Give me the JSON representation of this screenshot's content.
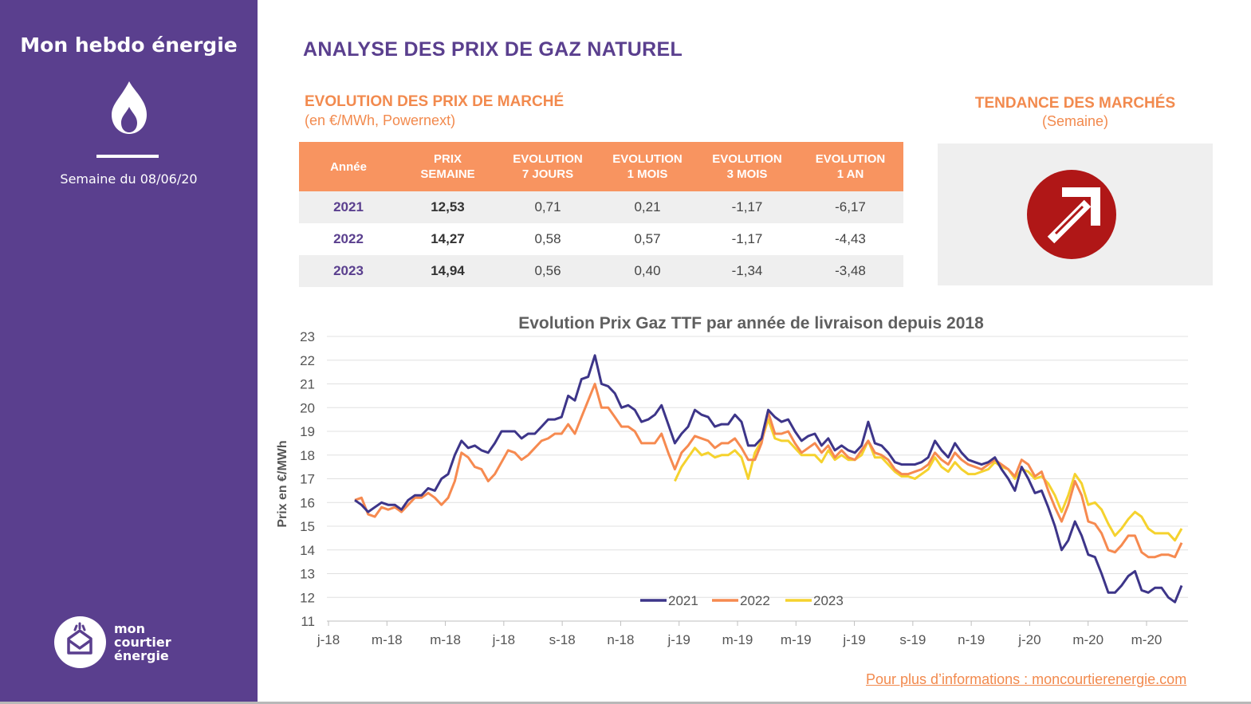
{
  "sidebar": {
    "brand": "Mon hebdo énergie",
    "week": "Semaine du 08/06/20",
    "logo_lines": [
      "mon",
      "courtier",
      "énergie"
    ]
  },
  "header": {
    "title": "ANALYSE DES PRIX DE GAZ NATUREL"
  },
  "market": {
    "title": "EVOLUTION DES PRIX DE MARCHÉ",
    "unit": "(en €/MWh, Powernext)",
    "headers": [
      "Année",
      "PRIX SEMAINE",
      "EVOLUTION 7 JOURS",
      "EVOLUTION 1 MOIS",
      "EVOLUTION 3 MOIS",
      "EVOLUTION 1 AN"
    ],
    "header_lines": [
      [
        "Année"
      ],
      [
        "PRIX",
        "SEMAINE"
      ],
      [
        "EVOLUTION",
        "7 JOURS"
      ],
      [
        "EVOLUTION",
        "1 MOIS"
      ],
      [
        "EVOLUTION",
        "3 MOIS"
      ],
      [
        "EVOLUTION",
        "1 AN"
      ]
    ],
    "rows": [
      [
        "2021",
        "12,53",
        "0,71",
        "0,21",
        "-1,17",
        "-6,17"
      ],
      [
        "2022",
        "14,27",
        "0,58",
        "0,57",
        "-1,17",
        "-4,43"
      ],
      [
        "2023",
        "14,94",
        "0,56",
        "0,40",
        "-1,34",
        "-3,48"
      ]
    ]
  },
  "trend": {
    "title": "TENDANCE DES MARCHÉS",
    "subtitle": "(Semaine)",
    "direction": "up-arrow-icon",
    "color": "#b01717"
  },
  "footer": {
    "link": "Pour plus d’informations : moncourtierenergie.com"
  },
  "colors": {
    "sidebar": "#5a3f8e",
    "accent": "#f28a4e",
    "s2021": "#3d3589",
    "s2022": "#f68a50",
    "s2023": "#f5d22e"
  },
  "chart_data": {
    "type": "line",
    "title": "Evolution Prix Gaz TTF par année de livraison depuis 2018",
    "ylabel": "Prix en €/MWh",
    "xlabel": "",
    "ylim": [
      11,
      23
    ],
    "yticks": [
      11,
      12,
      13,
      14,
      15,
      16,
      17,
      18,
      19,
      20,
      21,
      22,
      23
    ],
    "xticks": [
      "j-18",
      "m-18",
      "m-18",
      "j-18",
      "s-18",
      "n-18",
      "j-19",
      "m-19",
      "m-19",
      "j-19",
      "s-19",
      "n-19",
      "j-20",
      "m-20",
      "m-20"
    ],
    "grid": true,
    "legend": "bottom",
    "series": [
      {
        "name": "2021",
        "color": "#3d3589",
        "values": [
          16.1,
          15.9,
          15.6,
          15.8,
          16.0,
          15.9,
          15.9,
          15.7,
          16.1,
          16.3,
          16.3,
          16.6,
          16.5,
          17.0,
          17.2,
          18.0,
          18.6,
          18.3,
          18.4,
          18.2,
          18.1,
          18.5,
          19.0,
          19.0,
          19.0,
          18.7,
          18.9,
          18.9,
          19.2,
          19.5,
          19.5,
          19.6,
          20.5,
          20.3,
          21.2,
          21.3,
          22.2,
          21.0,
          20.9,
          20.6,
          20.0,
          20.1,
          19.9,
          19.4,
          19.5,
          19.7,
          20.1,
          19.3,
          18.5,
          18.9,
          19.2,
          19.9,
          19.7,
          19.6,
          19.2,
          19.3,
          19.3,
          19.7,
          19.4,
          18.4,
          18.4,
          18.7,
          19.9,
          19.6,
          19.4,
          19.5,
          19.0,
          18.6,
          18.8,
          18.9,
          18.4,
          18.7,
          18.2,
          18.4,
          18.2,
          18.1,
          18.4,
          19.4,
          18.5,
          18.4,
          18.1,
          17.7,
          17.6,
          17.6,
          17.6,
          17.7,
          17.9,
          18.6,
          18.2,
          17.9,
          18.5,
          18.1,
          17.8,
          17.7,
          17.6,
          17.7,
          17.9,
          17.4,
          17.0,
          16.5,
          17.5,
          17.0,
          16.4,
          16.5,
          15.8,
          15.0,
          14.0,
          14.4,
          15.2,
          14.6,
          13.8,
          13.7,
          13.0,
          12.2,
          12.2,
          12.5,
          12.9,
          13.1,
          12.3,
          12.2,
          12.4,
          12.4,
          12.0,
          11.8,
          12.5
        ]
      },
      {
        "name": "2022",
        "color": "#f68a50",
        "values": [
          16.1,
          16.2,
          15.5,
          15.4,
          15.8,
          15.7,
          15.8,
          15.6,
          15.9,
          16.2,
          16.2,
          16.4,
          16.2,
          15.9,
          16.2,
          16.9,
          18.1,
          17.9,
          17.5,
          17.4,
          16.9,
          17.2,
          17.7,
          18.2,
          18.1,
          17.8,
          18.0,
          18.3,
          18.6,
          18.7,
          18.9,
          18.9,
          19.3,
          18.9,
          19.6,
          20.3,
          21.0,
          20.0,
          20.0,
          19.6,
          19.2,
          19.2,
          19.0,
          18.5,
          18.5,
          18.5,
          18.9,
          18.1,
          17.4,
          18.1,
          18.4,
          18.8,
          18.7,
          18.6,
          18.3,
          18.5,
          18.5,
          18.7,
          18.3,
          17.8,
          17.8,
          18.5,
          19.8,
          18.9,
          18.9,
          19.0,
          18.5,
          18.1,
          18.3,
          18.5,
          18.1,
          18.4,
          17.9,
          18.2,
          17.9,
          17.8,
          18.2,
          18.6,
          18.1,
          18.0,
          17.8,
          17.4,
          17.2,
          17.2,
          17.3,
          17.4,
          17.6,
          18.1,
          17.8,
          17.6,
          18.1,
          17.8,
          17.6,
          17.5,
          17.4,
          17.6,
          17.8,
          17.6,
          17.4,
          17.1,
          17.8,
          17.6,
          17.1,
          17.3,
          16.5,
          15.8,
          15.2,
          15.9,
          16.9,
          16.3,
          15.2,
          15.1,
          14.7,
          14.0,
          13.9,
          14.2,
          14.6,
          14.6,
          13.9,
          13.7,
          13.7,
          13.8,
          13.8,
          13.7,
          14.3
        ]
      },
      {
        "name": "2023",
        "color": "#f5d22e",
        "values": [
          null,
          null,
          null,
          null,
          null,
          null,
          null,
          null,
          null,
          null,
          null,
          null,
          null,
          null,
          null,
          null,
          null,
          null,
          null,
          null,
          null,
          null,
          null,
          null,
          null,
          null,
          null,
          null,
          null,
          null,
          null,
          null,
          null,
          null,
          null,
          null,
          null,
          null,
          null,
          null,
          null,
          null,
          null,
          null,
          null,
          null,
          null,
          null,
          16.9,
          17.5,
          17.9,
          18.3,
          18.0,
          18.1,
          17.9,
          18.0,
          18.0,
          18.2,
          17.9,
          17.0,
          18.1,
          18.6,
          19.5,
          18.7,
          18.6,
          18.6,
          18.3,
          18.0,
          18.0,
          18.0,
          17.7,
          18.2,
          17.8,
          18.0,
          17.8,
          17.8,
          18.0,
          18.6,
          17.9,
          17.9,
          17.6,
          17.3,
          17.1,
          17.1,
          17.0,
          17.2,
          17.4,
          17.9,
          17.5,
          17.3,
          17.7,
          17.4,
          17.2,
          17.2,
          17.3,
          17.4,
          17.7,
          17.5,
          17.4,
          17.0,
          17.4,
          17.3,
          17.0,
          17.1,
          16.8,
          16.3,
          15.6,
          16.3,
          17.2,
          16.8,
          15.9,
          16.0,
          15.7,
          15.1,
          14.6,
          14.9,
          15.3,
          15.6,
          15.4,
          14.9,
          14.7,
          14.7,
          14.7,
          14.4,
          14.9
        ]
      }
    ]
  }
}
